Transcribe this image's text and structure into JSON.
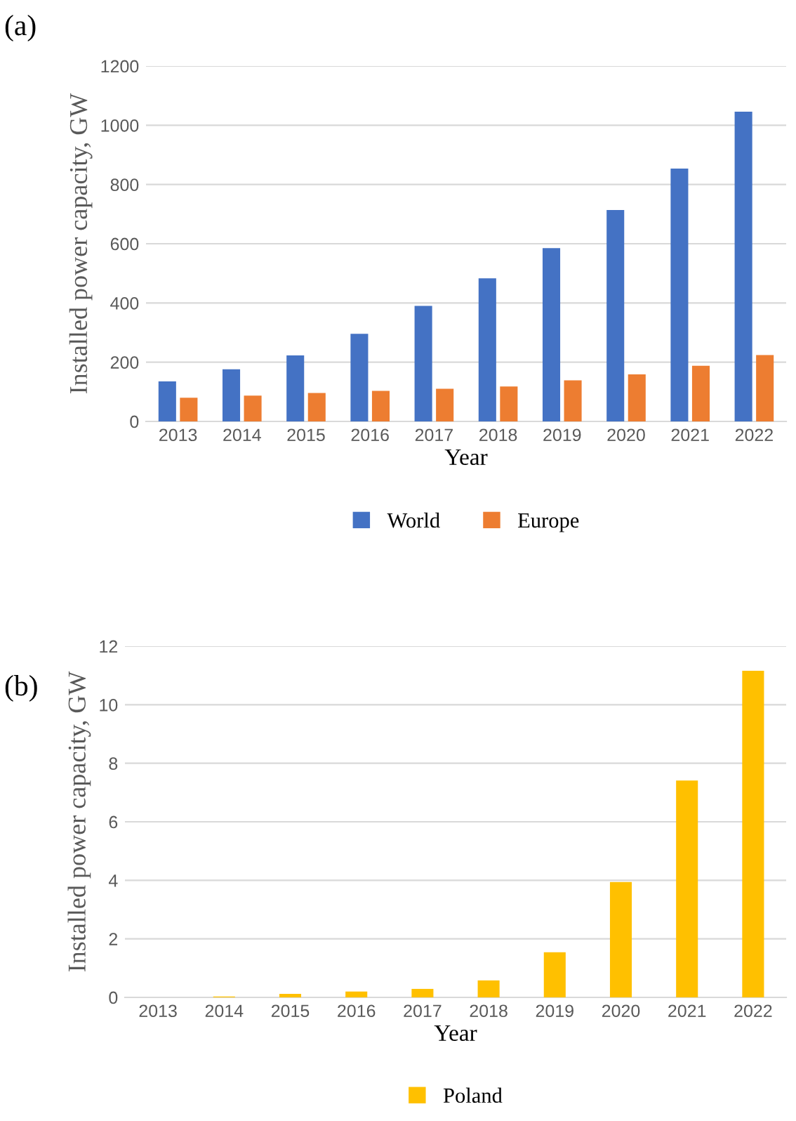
{
  "chart_data": [
    {
      "type": "bar",
      "annotations": [
        "(a)"
      ],
      "xlabel": "Year",
      "ylabel": "Installed power capacity, GW",
      "categories": [
        "2013",
        "2014",
        "2015",
        "2016",
        "2017",
        "2018",
        "2019",
        "2020",
        "2021",
        "2022"
      ],
      "series": [
        {
          "name": "World",
          "color": "#4472c4",
          "values": [
            135,
            176,
            223,
            296,
            390,
            483,
            585,
            714,
            854,
            1046
          ]
        },
        {
          "name": "Europe",
          "color": "#ed7d31",
          "values": [
            80,
            87,
            96,
            103,
            110,
            118,
            139,
            159,
            188,
            224
          ]
        }
      ],
      "ylim": [
        0,
        1200
      ],
      "yticks": [
        0,
        200,
        400,
        600,
        800,
        1000,
        1200
      ],
      "grid": "y",
      "legend": "bottom"
    },
    {
      "type": "bar",
      "annotations": [
        "(b)"
      ],
      "xlabel": "Year",
      "ylabel": "Installed power capacity, GW",
      "categories": [
        "2013",
        "2014",
        "2015",
        "2016",
        "2017",
        "2018",
        "2019",
        "2020",
        "2021",
        "2022"
      ],
      "series": [
        {
          "name": "Poland",
          "color": "#ffc000",
          "values": [
            0,
            0.03,
            0.12,
            0.2,
            0.29,
            0.58,
            1.54,
            3.94,
            7.41,
            11.16
          ]
        }
      ],
      "ylim": [
        0,
        12
      ],
      "yticks": [
        0,
        2,
        4,
        6,
        8,
        10,
        12
      ],
      "grid": "y",
      "legend": "bottom"
    }
  ]
}
